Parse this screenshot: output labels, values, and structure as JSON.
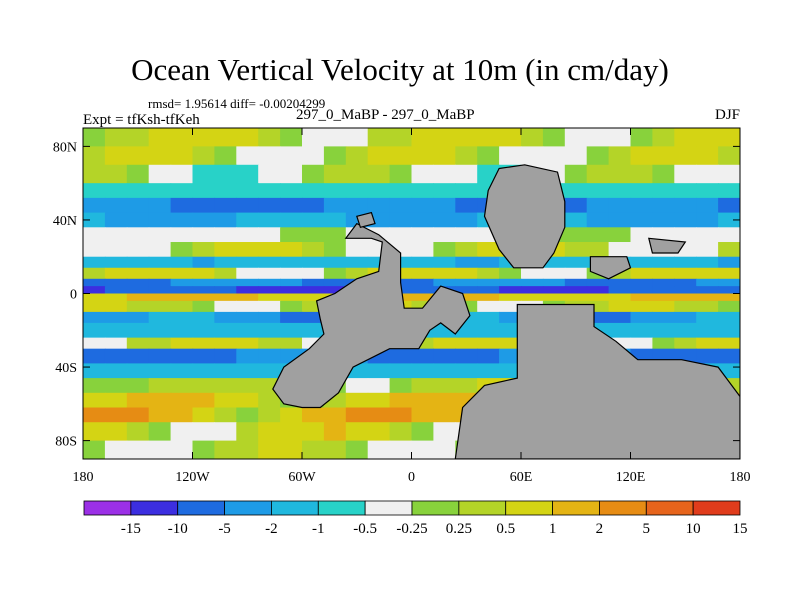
{
  "chart_data": {
    "type": "heatmap",
    "title": "Ocean Vertical Velocity at 10m (in cm/day)",
    "stats": "rmsd= 1.95614 diff= -0.00204299",
    "experiment": "Expt = tfKsh-tfKeh",
    "center_label": "297_0_MaBP - 297_0_MaBP",
    "season": "DJF",
    "x_ticks": [
      "180",
      "120W",
      "60W",
      "0",
      "60E",
      "120E",
      "180"
    ],
    "x_values": [
      -180,
      -120,
      -60,
      0,
      60,
      120,
      180
    ],
    "xlim": [
      -180,
      180
    ],
    "y_ticks": [
      "80N",
      "40N",
      "0",
      "40S",
      "80S"
    ],
    "y_values": [
      80,
      40,
      0,
      -40,
      -80
    ],
    "ylim": [
      -90,
      90
    ],
    "levels": [
      "-15",
      "-10",
      "-5",
      "-2",
      "-1",
      "-0.5",
      "-0.25",
      "0.25",
      "0.5",
      "1",
      "2",
      "5",
      "10",
      "15"
    ],
    "colors": [
      "#9b30e6",
      "#3c2ee0",
      "#1e6be0",
      "#1e9be6",
      "#20b8de",
      "#28d2c8",
      "#f0f0f0",
      "#88d23c",
      "#b4d428",
      "#d4d414",
      "#e4b414",
      "#e68c14",
      "#e6641c",
      "#e03c1c"
    ],
    "land_color": "#a0a0a0"
  }
}
